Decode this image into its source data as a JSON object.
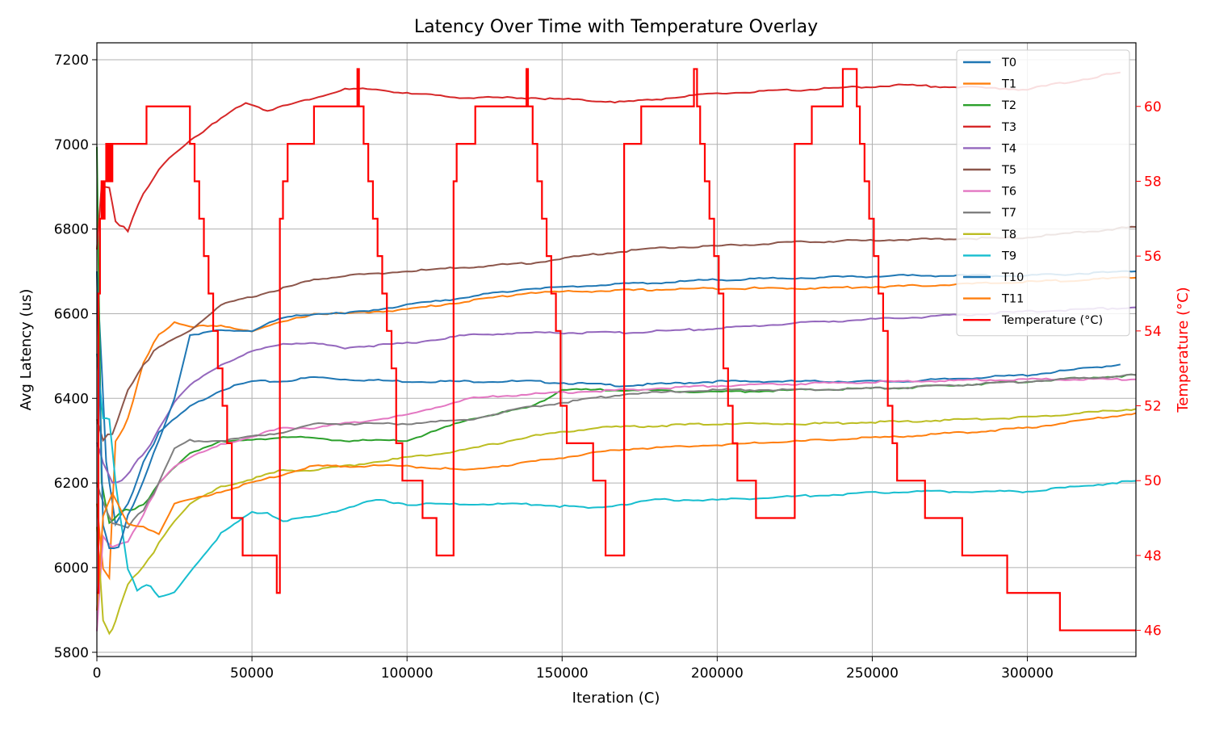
{
  "chart_data": {
    "type": "line",
    "title": "Latency Over Time with Temperature Overlay",
    "xlabel": "Iteration (C)",
    "ylabel": "Avg Latency (us)",
    "y2label": "Temperature (°C)",
    "xlim": [
      0,
      335000
    ],
    "ylim": [
      5790,
      7240
    ],
    "y2lim": [
      45.3,
      61.7
    ],
    "xticks": [
      0,
      50000,
      100000,
      150000,
      200000,
      250000,
      300000
    ],
    "yticks": [
      5800,
      6000,
      6200,
      6400,
      6600,
      6800,
      7000,
      7200
    ],
    "y2ticks": [
      46,
      48,
      50,
      52,
      54,
      56,
      58,
      60
    ],
    "grid": true,
    "legend_position": "top-right",
    "colors": {
      "T0": "#1f77b4",
      "T1": "#ff7f0e",
      "T2": "#2ca02c",
      "T3": "#d62728",
      "T4": "#9467bd",
      "T5": "#8c564b",
      "T6": "#e377c2",
      "T7": "#7f7f7f",
      "T8": "#bcbd22",
      "T9": "#17becf",
      "T10": "#1f77b4",
      "T11": "#ff7f0e",
      "temperature": "#ff0000"
    },
    "series": [
      {
        "name": "T0",
        "color": "#1f77b4",
        "x": [
          0,
          3000,
          6000,
          10000,
          15000,
          20000,
          30000,
          40000,
          50000,
          60000,
          70000,
          80000,
          100000,
          120000,
          140000,
          170000,
          200000,
          230000,
          260000,
          300000,
          330000
        ],
        "y": [
          6700,
          6250,
          6100,
          6150,
          6250,
          6320,
          6380,
          6420,
          6440,
          6440,
          6450,
          6445,
          6440,
          6440,
          6440,
          6430,
          6440,
          6440,
          6440,
          6455,
          6480
        ]
      },
      {
        "name": "T1",
        "color": "#ff7f0e",
        "x": [
          0,
          2000,
          4000,
          6000,
          10000,
          15000,
          20000,
          25000,
          30000,
          40000,
          50000,
          60000,
          70000,
          80000,
          100000,
          120000,
          140000,
          170000,
          200000,
          230000,
          260000,
          300000,
          335000
        ],
        "y": [
          6150,
          6000,
          5980,
          6300,
          6350,
          6480,
          6550,
          6580,
          6570,
          6570,
          6560,
          6580,
          6600,
          6600,
          6610,
          6630,
          6650,
          6655,
          6660,
          6660,
          6665,
          6675,
          6685
        ]
      },
      {
        "name": "T2",
        "color": "#2ca02c",
        "x": [
          0,
          1500,
          4000,
          8000,
          15000,
          20000,
          30000,
          40000,
          50000,
          60000,
          70000,
          80000,
          90000,
          100000,
          120000,
          140000,
          150000,
          170000,
          200000,
          230000,
          260000,
          300000,
          335000
        ],
        "y": [
          7000,
          6200,
          6100,
          6130,
          6150,
          6200,
          6270,
          6300,
          6300,
          6310,
          6305,
          6300,
          6300,
          6300,
          6350,
          6380,
          6420,
          6420,
          6415,
          6420,
          6425,
          6440,
          6455
        ]
      },
      {
        "name": "T3",
        "color": "#d62728",
        "x": [
          0,
          1500,
          4000,
          6000,
          10000,
          15000,
          20000,
          25000,
          30000,
          40000,
          48000,
          55000,
          60000,
          70000,
          80000,
          90000,
          100000,
          120000,
          140000,
          170000,
          200000,
          230000,
          260000,
          300000,
          330000
        ],
        "y": [
          6750,
          6900,
          6900,
          6820,
          6800,
          6880,
          6940,
          6980,
          7010,
          7060,
          7100,
          7080,
          7090,
          7110,
          7130,
          7130,
          7120,
          7110,
          7110,
          7100,
          7120,
          7130,
          7140,
          7130,
          7170
        ]
      },
      {
        "name": "T4",
        "color": "#9467bd",
        "x": [
          0,
          2000,
          5000,
          8000,
          12000,
          16000,
          20000,
          25000,
          30000,
          40000,
          50000,
          60000,
          70000,
          80000,
          100000,
          120000,
          140000,
          170000,
          200000,
          230000,
          260000,
          300000,
          335000
        ],
        "y": [
          6300,
          6250,
          6200,
          6200,
          6240,
          6280,
          6330,
          6390,
          6430,
          6480,
          6510,
          6530,
          6530,
          6520,
          6530,
          6550,
          6555,
          6555,
          6565,
          6580,
          6590,
          6605,
          6615
        ]
      },
      {
        "name": "T5",
        "color": "#8c564b",
        "x": [
          0,
          2000,
          5000,
          10000,
          15000,
          20000,
          30000,
          40000,
          50000,
          60000,
          70000,
          80000,
          100000,
          120000,
          140000,
          160000,
          180000,
          200000,
          230000,
          260000,
          300000,
          335000
        ],
        "y": [
          6350,
          6300,
          6320,
          6420,
          6480,
          6520,
          6560,
          6620,
          6640,
          6660,
          6680,
          6690,
          6700,
          6710,
          6720,
          6740,
          6755,
          6760,
          6770,
          6775,
          6780,
          6805
        ]
      },
      {
        "name": "T6",
        "color": "#e377c2",
        "x": [
          0,
          2000,
          5000,
          10000,
          15000,
          20000,
          25000,
          30000,
          40000,
          50000,
          60000,
          70000,
          80000,
          100000,
          120000,
          140000,
          170000,
          200000,
          230000,
          260000,
          300000,
          335000
        ],
        "y": [
          5850,
          6080,
          6050,
          6060,
          6120,
          6200,
          6240,
          6260,
          6290,
          6310,
          6330,
          6330,
          6340,
          6360,
          6400,
          6410,
          6420,
          6430,
          6435,
          6440,
          6445,
          6445
        ]
      },
      {
        "name": "T7",
        "color": "#7f7f7f",
        "x": [
          0,
          2000,
          5000,
          10000,
          15000,
          20000,
          25000,
          30000,
          40000,
          50000,
          60000,
          70000,
          80000,
          100000,
          120000,
          140000,
          170000,
          200000,
          230000,
          260000,
          300000,
          335000
        ],
        "y": [
          6200,
          6150,
          6100,
          6100,
          6140,
          6200,
          6280,
          6300,
          6300,
          6310,
          6320,
          6340,
          6340,
          6340,
          6350,
          6380,
          6410,
          6420,
          6420,
          6425,
          6440,
          6455
        ]
      },
      {
        "name": "T8",
        "color": "#bcbd22",
        "x": [
          0,
          2000,
          4000,
          6000,
          10000,
          15000,
          20000,
          25000,
          30000,
          40000,
          50000,
          60000,
          70000,
          80000,
          100000,
          120000,
          140000,
          160000,
          200000,
          230000,
          260000,
          300000,
          335000
        ],
        "y": [
          6100,
          5880,
          5850,
          5870,
          5960,
          6000,
          6060,
          6110,
          6150,
          6190,
          6210,
          6230,
          6230,
          6240,
          6260,
          6280,
          6310,
          6330,
          6340,
          6340,
          6345,
          6355,
          6375
        ]
      },
      {
        "name": "T9",
        "color": "#17becf",
        "x": [
          0,
          2000,
          4000,
          6000,
          10000,
          13000,
          16000,
          20000,
          25000,
          30000,
          40000,
          50000,
          55000,
          60000,
          70000,
          80000,
          90000,
          100000,
          120000,
          140000,
          160000,
          180000,
          200000,
          230000,
          260000,
          300000,
          335000
        ],
        "y": [
          6500,
          6350,
          6350,
          6200,
          6000,
          5950,
          5960,
          5930,
          5940,
          5990,
          6080,
          6130,
          6130,
          6110,
          6120,
          6140,
          6160,
          6150,
          6150,
          6150,
          6140,
          6160,
          6160,
          6170,
          6180,
          6180,
          6205
        ]
      },
      {
        "name": "T10",
        "color": "#1f77b4",
        "x": [
          0,
          2000,
          4000,
          7000,
          10000,
          15000,
          20000,
          25000,
          30000,
          40000,
          50000,
          60000,
          70000,
          80000,
          100000,
          120000,
          140000,
          170000,
          200000,
          230000,
          260000,
          300000,
          335000
        ],
        "y": [
          6700,
          6100,
          6050,
          6050,
          6120,
          6200,
          6300,
          6400,
          6550,
          6560,
          6560,
          6590,
          6600,
          6600,
          6620,
          6640,
          6660,
          6670,
          6680,
          6685,
          6690,
          6690,
          6700
        ]
      },
      {
        "name": "T11",
        "color": "#ff7f0e",
        "x": [
          0,
          2000,
          5000,
          10000,
          15000,
          20000,
          25000,
          30000,
          40000,
          50000,
          60000,
          70000,
          80000,
          100000,
          120000,
          140000,
          170000,
          200000,
          230000,
          260000,
          300000,
          335000
        ],
        "y": [
          5900,
          6120,
          6170,
          6100,
          6100,
          6080,
          6150,
          6160,
          6180,
          6200,
          6220,
          6240,
          6240,
          6240,
          6230,
          6250,
          6280,
          6290,
          6300,
          6310,
          6330,
          6365
        ]
      },
      {
        "name": "Temperature (°C)",
        "color": "#ff0000",
        "axis": "right",
        "step": true,
        "x": [
          0,
          500,
          1000,
          1500,
          2000,
          2500,
          3000,
          3500,
          4000,
          4500,
          5000,
          5500,
          16000,
          29000,
          30000,
          31500,
          33000,
          34500,
          36000,
          37500,
          39000,
          40500,
          42000,
          43500,
          47000,
          58000,
          59000,
          60000,
          61500,
          70000,
          84000,
          84500,
          86000,
          87500,
          89000,
          90500,
          92000,
          93500,
          95000,
          96500,
          98500,
          105000,
          109500,
          115000,
          116000,
          122000,
          138500,
          139000,
          140500,
          142000,
          143500,
          145000,
          146500,
          148000,
          149500,
          151500,
          160000,
          164000,
          170000,
          171000,
          175500,
          192500,
          193500,
          194500,
          196000,
          197500,
          199000,
          200500,
          202000,
          203500,
          205000,
          206500,
          212500,
          225000,
          230500,
          240500,
          245000,
          246000,
          247500,
          249000,
          250500,
          252000,
          253500,
          255000,
          256500,
          258000,
          267000,
          279000,
          293500,
          310500,
          335000
        ],
        "y": [
          47,
          55,
          57,
          58,
          57,
          58,
          59,
          58,
          59,
          58,
          59,
          59,
          60,
          60,
          59,
          58,
          57,
          56,
          55,
          54,
          53,
          52,
          51,
          49,
          48,
          47,
          57,
          58,
          59,
          60,
          61,
          60,
          59,
          58,
          57,
          56,
          55,
          54,
          53,
          51,
          50,
          49,
          48,
          58,
          59,
          60,
          61,
          60,
          59,
          58,
          57,
          56,
          55,
          54,
          52,
          51,
          50,
          48,
          59,
          59,
          60,
          61,
          60,
          59,
          58,
          57,
          56,
          55,
          53,
          52,
          51,
          50,
          49,
          59,
          60,
          61,
          60,
          59,
          58,
          57,
          56,
          55,
          54,
          52,
          51,
          50,
          49,
          48,
          47,
          46,
          46
        ]
      }
    ]
  }
}
